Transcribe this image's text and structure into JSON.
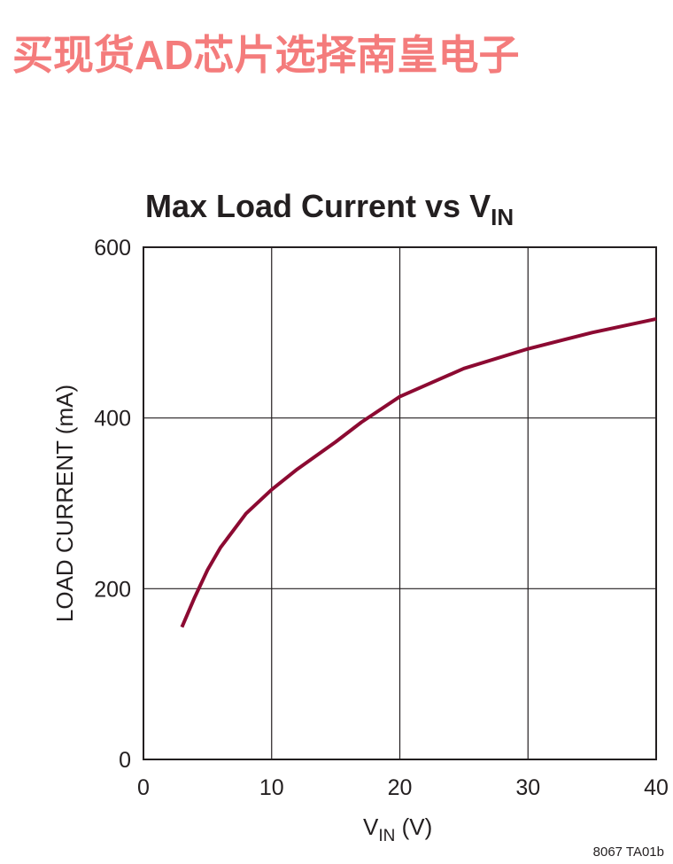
{
  "banner": "买现货AD芯片选择南皇电子",
  "footnote": "8067 TA01b",
  "chart_data": {
    "type": "line",
    "title_parts": [
      "Max Load Current vs V",
      "IN"
    ],
    "x_label_parts": [
      "V",
      "IN",
      " (V)"
    ],
    "y_label": "LOAD CURRENT (mA)",
    "x": [
      3,
      4,
      5,
      6,
      8,
      10,
      12,
      15,
      17,
      20,
      25,
      30,
      35,
      40
    ],
    "series": [
      {
        "color": "#8c0a32",
        "values": [
          155,
          190,
          222,
          248,
          288,
          316,
          340,
          372,
          395,
          425,
          458,
          481,
          500,
          516
        ]
      }
    ],
    "xlim": [
      0,
      40
    ],
    "xticks": [
      0,
      10,
      20,
      30,
      40
    ],
    "ylim": [
      0,
      600
    ],
    "yticks": [
      0,
      200,
      400,
      600
    ],
    "grid": true
  }
}
